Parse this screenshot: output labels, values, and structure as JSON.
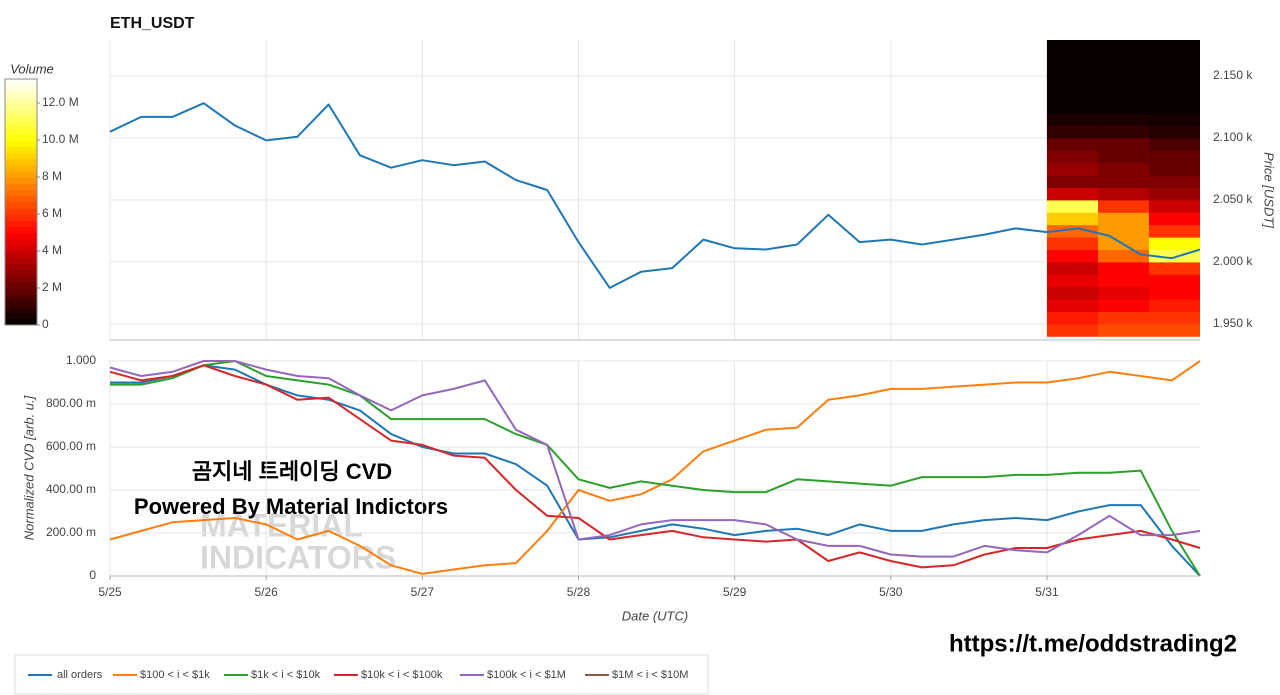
{
  "chart_data": [
    {
      "type": "line",
      "title": "ETH_USDT",
      "ylabel": "Price [USDT]",
      "x": [
        0,
        0.2,
        0.4,
        0.6,
        0.8,
        1.0,
        1.2,
        1.4,
        1.6,
        1.8,
        2.0,
        2.2,
        2.4,
        2.6,
        2.8,
        3.0,
        3.2,
        3.4,
        3.6,
        3.8,
        4.0,
        4.2,
        4.4,
        4.6,
        4.8,
        5.0,
        5.2,
        5.4,
        5.6,
        5.8,
        6.0,
        6.2,
        6.4,
        6.6,
        6.8,
        6.98
      ],
      "xlim": [
        0,
        6.98
      ],
      "ylim": [
        1937,
        2179
      ],
      "yticks": [
        {
          "value": 1950,
          "label": "1.950 k"
        },
        {
          "value": 2000,
          "label": "2.000 k"
        },
        {
          "value": 2050,
          "label": "2.050 k"
        },
        {
          "value": 2100,
          "label": "2.100 k"
        },
        {
          "value": 2150,
          "label": "2.150 k"
        }
      ],
      "grid": true,
      "series": [
        {
          "name": "price",
          "color": "#1f77b4",
          "values": [
            2105,
            2117,
            2117,
            2128,
            2110,
            2098,
            2101,
            2127,
            2086,
            2076,
            2082,
            2078,
            2081,
            2066,
            2058,
            2016,
            1979,
            1992,
            1995,
            2018,
            2011,
            2010,
            2014,
            2038,
            2016,
            2018,
            2014,
            2018,
            2022,
            2027,
            2024,
            2027,
            2021,
            2006,
            2003,
            2010
          ]
        }
      ],
      "heatmap": {
        "colormap": "hot",
        "label": "Volume",
        "time_bins": [
          6.0,
          6.327,
          6.653,
          6.98
        ],
        "price_bins": [
          1940,
          1950,
          1960,
          1970,
          1980,
          1990,
          2000,
          2010,
          2020,
          2030,
          2040,
          2050,
          2060,
          2070,
          2080,
          2090,
          2100,
          2110,
          2120,
          2130,
          2140,
          2150,
          2160,
          2170,
          2180
        ],
        "volumes": [
          [
            6000000,
            6500000,
            6500000
          ],
          [
            5500000,
            6000000,
            6000000
          ],
          [
            4500000,
            5000000,
            5500000
          ],
          [
            4000000,
            4500000,
            5000000
          ],
          [
            4500000,
            5000000,
            5000000
          ],
          [
            4000000,
            5000000,
            6000000
          ],
          [
            5000000,
            7000000,
            11000000
          ],
          [
            6000000,
            8000000,
            10000000
          ],
          [
            7000000,
            8000000,
            6000000
          ],
          [
            9000000,
            8000000,
            5000000
          ],
          [
            11000000,
            6000000,
            4000000
          ],
          [
            4000000,
            3500000,
            3000000
          ],
          [
            2500000,
            2500000,
            2500000
          ],
          [
            3000000,
            2500000,
            2000000
          ],
          [
            2500000,
            2000000,
            2000000
          ],
          [
            2000000,
            2000000,
            1500000
          ],
          [
            1000000,
            1000000,
            800000
          ],
          [
            500000,
            500000,
            400000
          ],
          [
            200000,
            200000,
            200000
          ],
          [
            200000,
            200000,
            200000
          ],
          [
            200000,
            200000,
            200000
          ],
          [
            200000,
            200000,
            200000
          ],
          [
            200000,
            200000,
            200000
          ],
          [
            200000,
            200000,
            200000
          ]
        ],
        "clim": [
          0,
          13300000
        ],
        "cticks": [
          0,
          {
            "value": 2000000,
            "label": "2 M"
          },
          {
            "value": 4000000,
            "label": "4 M"
          },
          {
            "value": 6000000,
            "label": "6 M"
          },
          {
            "value": 8000000,
            "label": "8 M"
          },
          {
            "value": 10000000,
            "label": "10.0 M"
          },
          {
            "value": 12000000,
            "label": "12.0 M"
          }
        ]
      }
    },
    {
      "type": "line",
      "xlabel": "Date (UTC)",
      "ylabel": "Normalized CVD [arb. u.]",
      "x": [
        0,
        0.2,
        0.4,
        0.6,
        0.8,
        1.0,
        1.2,
        1.4,
        1.6,
        1.8,
        2.0,
        2.2,
        2.4,
        2.6,
        2.8,
        3.0,
        3.2,
        3.4,
        3.6,
        3.8,
        4.0,
        4.2,
        4.4,
        4.6,
        4.8,
        5.0,
        5.2,
        5.4,
        5.6,
        5.8,
        6.0,
        6.2,
        6.4,
        6.6,
        6.8,
        6.98
      ],
      "xlim": [
        0,
        6.98
      ],
      "xticks": [
        {
          "value": 0,
          "label": "5/25"
        },
        {
          "value": 1,
          "label": "5/26"
        },
        {
          "value": 2,
          "label": "5/27"
        },
        {
          "value": 3,
          "label": "5/28"
        },
        {
          "value": 4,
          "label": "5/29"
        },
        {
          "value": 5,
          "label": "5/30"
        },
        {
          "value": 6,
          "label": "5/31"
        }
      ],
      "ylim": [
        0,
        1
      ],
      "yticks": [
        0,
        {
          "value": 0.2,
          "label": "200.00 m"
        },
        {
          "value": 0.4,
          "label": "400.00 m"
        },
        {
          "value": 0.6,
          "label": "600.00 m"
        },
        {
          "value": 0.8,
          "label": "800.00 m"
        },
        {
          "value": 1,
          "label": "1.000"
        }
      ],
      "grid": true,
      "series": [
        {
          "name": "all orders",
          "color": "#1f77b4",
          "values": [
            0.9,
            0.9,
            0.93,
            0.98,
            0.96,
            0.89,
            0.84,
            0.82,
            0.77,
            0.66,
            0.6,
            0.57,
            0.57,
            0.52,
            0.42,
            0.17,
            0.18,
            0.21,
            0.24,
            0.22,
            0.19,
            0.21,
            0.22,
            0.19,
            0.24,
            0.21,
            0.21,
            0.24,
            0.26,
            0.27,
            0.26,
            0.3,
            0.33,
            0.33,
            0.14,
            0.0
          ]
        },
        {
          "name": "$100 < i < $1k",
          "color": "#ff7f0e",
          "values": [
            0.17,
            0.21,
            0.25,
            0.26,
            0.27,
            0.24,
            0.17,
            0.21,
            0.14,
            0.05,
            0.01,
            0.03,
            0.05,
            0.06,
            0.21,
            0.4,
            0.35,
            0.38,
            0.45,
            0.58,
            0.63,
            0.68,
            0.69,
            0.82,
            0.84,
            0.87,
            0.87,
            0.88,
            0.89,
            0.9,
            0.9,
            0.92,
            0.95,
            0.93,
            0.91,
            1.0
          ]
        },
        {
          "name": "$1k < i < $10k",
          "color": "#2ca02c",
          "values": [
            0.89,
            0.89,
            0.92,
            0.98,
            1.0,
            0.93,
            0.91,
            0.89,
            0.84,
            0.73,
            0.73,
            0.73,
            0.73,
            0.66,
            0.61,
            0.45,
            0.41,
            0.44,
            0.42,
            0.4,
            0.39,
            0.39,
            0.45,
            0.44,
            0.43,
            0.42,
            0.46,
            0.46,
            0.46,
            0.47,
            0.47,
            0.48,
            0.48,
            0.49,
            0.21,
            0.0
          ]
        },
        {
          "name": "$10k < i < $100k",
          "color": "#d62728",
          "values": [
            0.95,
            0.91,
            0.93,
            0.98,
            0.93,
            0.89,
            0.82,
            0.83,
            0.73,
            0.63,
            0.61,
            0.56,
            0.55,
            0.4,
            0.28,
            0.27,
            0.17,
            0.19,
            0.21,
            0.18,
            0.17,
            0.16,
            0.17,
            0.07,
            0.11,
            0.07,
            0.04,
            0.05,
            0.1,
            0.13,
            0.13,
            0.17,
            0.19,
            0.21,
            0.17,
            0.13
          ]
        },
        {
          "name": "$100k < i < $1M",
          "color": "#9467bd",
          "values": [
            0.97,
            0.93,
            0.95,
            1.0,
            1.0,
            0.96,
            0.93,
            0.92,
            0.84,
            0.77,
            0.84,
            0.87,
            0.91,
            0.68,
            0.61,
            0.17,
            0.19,
            0.24,
            0.26,
            0.26,
            0.26,
            0.24,
            0.17,
            0.14,
            0.14,
            0.1,
            0.09,
            0.09,
            0.14,
            0.12,
            0.11,
            0.19,
            0.28,
            0.19,
            0.19,
            0.21
          ]
        },
        {
          "name": "$1M < i < $10M",
          "color": "#8c564b",
          "values": [
            null,
            null,
            null,
            null,
            null,
            null,
            null,
            null,
            null,
            null,
            null,
            null,
            null,
            null,
            null,
            null,
            null,
            null,
            null,
            null,
            null,
            null,
            null,
            null,
            null,
            null,
            null,
            null,
            null,
            null,
            null,
            null,
            null,
            null,
            null,
            null
          ]
        }
      ]
    }
  ],
  "annotations": {
    "caption": "곰지네 트레이딩 CVD",
    "credit": "Powered By Material Indictors",
    "link": "https://t.me/oddstrading2",
    "watermark": [
      "MATERIAL",
      "INDICATORS"
    ]
  }
}
